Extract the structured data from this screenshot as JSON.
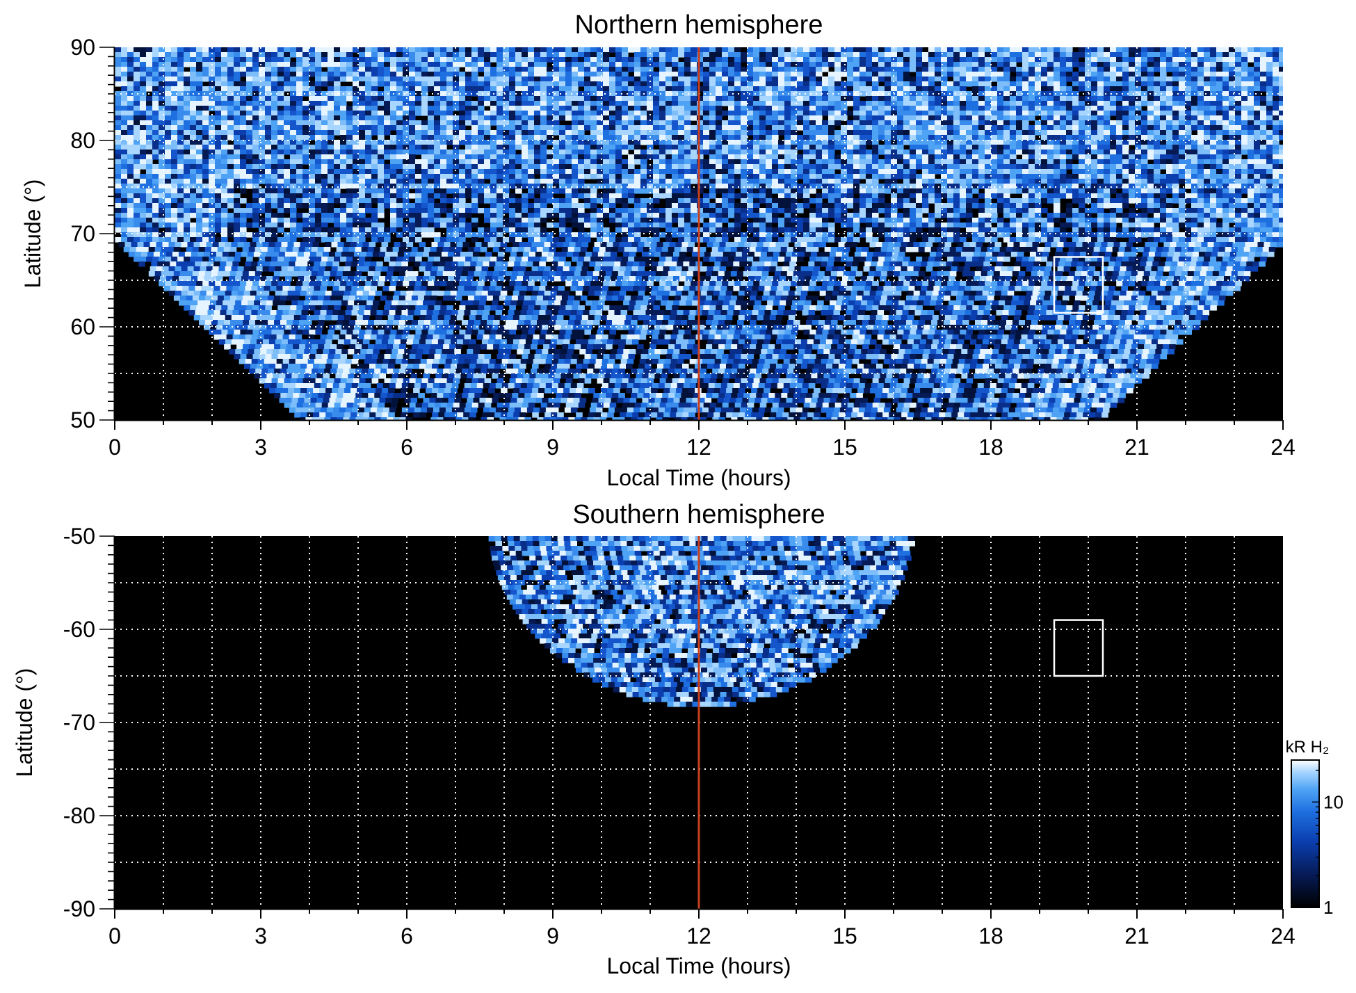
{
  "chart_data": [
    {
      "type": "heatmap",
      "title": "Northern hemisphere",
      "xlabel": "Local Time (hours)",
      "ylabel": "Latitude (°)",
      "xlim": [
        0,
        24
      ],
      "ylim": [
        50,
        90
      ],
      "x_ticks": [
        0,
        3,
        6,
        9,
        12,
        15,
        18,
        21,
        24
      ],
      "x_tick_labels": [
        "0",
        "3",
        "6",
        "9",
        "12",
        "15",
        "18",
        "21",
        "24"
      ],
      "y_ticks": [
        50,
        60,
        70,
        80,
        90
      ],
      "y_tick_labels": [
        "50",
        "60",
        "70",
        "80",
        "90"
      ],
      "grid": true,
      "grid_x": [
        1,
        2,
        3,
        4,
        5,
        6,
        7,
        8,
        9,
        10,
        11,
        12,
        13,
        14,
        15,
        16,
        17,
        18,
        19,
        20,
        21,
        22,
        23
      ],
      "grid_y": [
        55,
        60,
        65,
        70,
        75,
        80,
        85
      ],
      "coverage": {
        "inner_lat": 69.5,
        "lt_min": 4,
        "lt_max": 20.3,
        "outer_lat": 90
      },
      "reference_line": {
        "x": 12,
        "color": "#c8401e"
      },
      "box": {
        "x": [
          19.3,
          20.3
        ],
        "y": [
          61.5,
          67.5
        ],
        "color": "#ffffff"
      }
    },
    {
      "type": "heatmap",
      "title": "Southern hemisphere",
      "xlabel": "Local Time (hours)",
      "ylabel": "Latitude (°)",
      "xlim": [
        0,
        24
      ],
      "ylim": [
        -90,
        -50
      ],
      "x_ticks": [
        0,
        3,
        6,
        9,
        12,
        15,
        18,
        21,
        24
      ],
      "x_tick_labels": [
        "0",
        "3",
        "6",
        "9",
        "12",
        "15",
        "18",
        "21",
        "24"
      ],
      "y_ticks": [
        -90,
        -80,
        -70,
        -60,
        -50
      ],
      "y_tick_labels": [
        "-90",
        "-80",
        "-70",
        "-60",
        "-50"
      ],
      "grid": true,
      "grid_x": [
        1,
        2,
        3,
        4,
        5,
        6,
        7,
        8,
        9,
        10,
        11,
        12,
        13,
        14,
        15,
        16,
        17,
        18,
        19,
        20,
        21,
        22,
        23
      ],
      "grid_y": [
        -85,
        -80,
        -75,
        -70,
        -65,
        -60,
        -55
      ],
      "coverage": {
        "center_lt": 12,
        "half_width_lt": 4,
        "deepest_lat": -68
      },
      "reference_line": {
        "x": 12,
        "color": "#c8401e"
      },
      "box": {
        "x": [
          19.3,
          20.3
        ],
        "y": [
          -65,
          -59
        ],
        "color": "#ffffff"
      }
    }
  ],
  "colorbar": {
    "label": "kR H₂",
    "scale": "log",
    "range": [
      1,
      25
    ],
    "ticks": [
      1,
      10
    ],
    "tick_labels": [
      "1",
      "10"
    ],
    "colors": [
      "#000000",
      "#061a55",
      "#0b3fb0",
      "#1e6fe0",
      "#4fa3f5",
      "#a8d6ff",
      "#ffffff"
    ]
  }
}
